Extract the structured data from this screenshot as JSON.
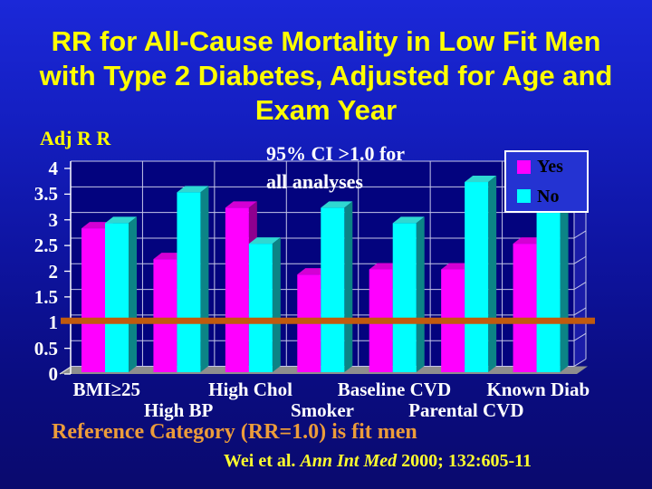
{
  "slide": {
    "title_lines": [
      "RR for All-Cause Mortality in Low Fit Men",
      "with Type 2 Diabetes, Adjusted for Age and",
      "Exam Year"
    ],
    "annotation_lines": [
      "95% CI >1.0 for",
      "all analyses"
    ],
    "footnote": "Reference Category (RR=1.0) is fit men",
    "citation": {
      "prefix": "Wei et al. ",
      "journal": "Ann Int Med",
      "suffix": " 2000; 132:605-11"
    }
  },
  "chart_data": {
    "type": "bar",
    "title": "RR for All-Cause Mortality in Low Fit Men with Type 2 Diabetes, Adjusted for Age and Exam Year",
    "ylabel": "Adj R R",
    "xlabel": "",
    "ylim": [
      0,
      4
    ],
    "ytick_step": 0.5,
    "ytick_labels": [
      "4",
      "3.5",
      "3",
      "2.5",
      "2",
      "1.5",
      "1",
      "0.5",
      "0"
    ],
    "grid": true,
    "legend_position": "top-right",
    "categories": [
      "BMI≥25",
      "High BP",
      "High Chol",
      "Smoker",
      "Baseline CVD",
      "Parental CVD",
      "Known Diab"
    ],
    "series": [
      {
        "name": "Yes",
        "color": "#ff00ff",
        "top_color": "#d400d4",
        "side_color": "#8f008f",
        "values": [
          2.8,
          2.2,
          3.2,
          1.9,
          2.0,
          2.0,
          2.5
        ]
      },
      {
        "name": "No",
        "color": "#00ffff",
        "top_color": "#2fd8d2",
        "side_color": "#0c8486",
        "values": [
          2.9,
          3.5,
          2.5,
          3.2,
          2.9,
          3.7,
          3.1
        ]
      }
    ],
    "reference_line": {
      "value": 1.0,
      "color": "#c15a0e"
    },
    "wall_color": "#03037e",
    "side_wall_color": "#1a1ca8",
    "floor_color": "#8e8e8e",
    "gridline_color": "#c4c6e8"
  }
}
